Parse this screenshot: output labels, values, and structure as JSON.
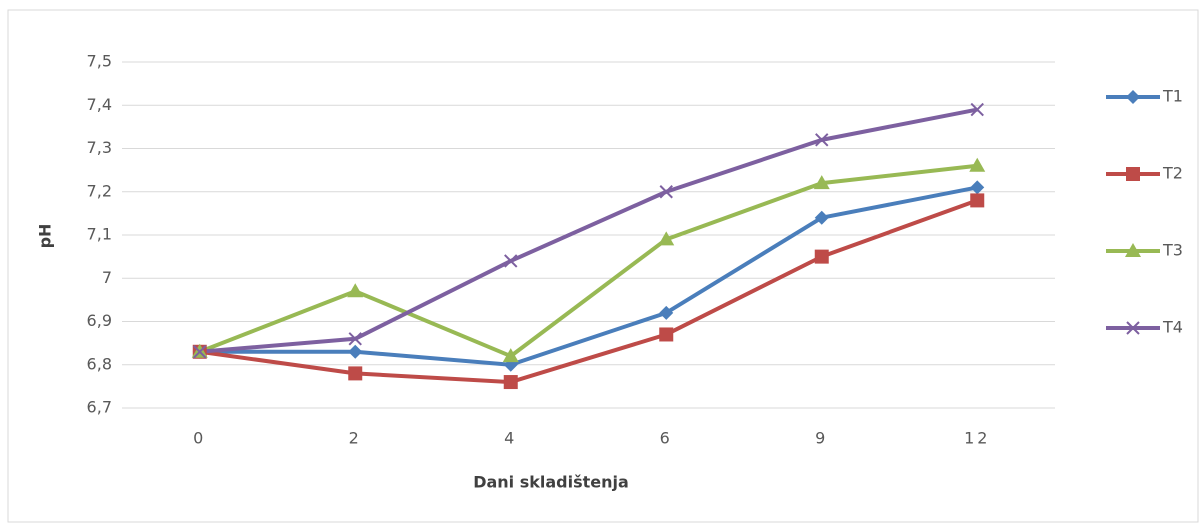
{
  "chart_data": {
    "type": "line",
    "y_label": "pH",
    "x_label": "Dani skladištenja",
    "categories": [
      "0",
      "2",
      "4",
      "6",
      "9",
      "12"
    ],
    "series": [
      {
        "name": "T1",
        "color": "#4a7ebb",
        "marker": "diamond",
        "values": [
          6.83,
          6.83,
          6.8,
          6.92,
          7.14,
          7.21
        ]
      },
      {
        "name": "T2",
        "color": "#be4b48",
        "marker": "square",
        "values": [
          6.83,
          6.78,
          6.76,
          6.87,
          7.05,
          7.18
        ]
      },
      {
        "name": "T3",
        "color": "#98b954",
        "marker": "triangle",
        "values": [
          6.83,
          6.97,
          6.82,
          7.09,
          7.22,
          7.26
        ]
      },
      {
        "name": "T4",
        "color": "#7d60a0",
        "marker": "x",
        "values": [
          6.83,
          6.86,
          7.04,
          7.2,
          7.32,
          7.39
        ]
      }
    ],
    "ylim": [
      6.7,
      7.5
    ],
    "yticks": [
      {
        "value": 6.7,
        "label": "6,7"
      },
      {
        "value": 6.8,
        "label": "6,8"
      },
      {
        "value": 6.9,
        "label": "6,9"
      },
      {
        "value": 7,
        "label": "7"
      },
      {
        "value": 7.1,
        "label": "7,1"
      },
      {
        "value": 7.2,
        "label": "7,2"
      },
      {
        "value": 7.3,
        "label": "7,3"
      },
      {
        "value": 7.4,
        "label": "7,4"
      },
      {
        "value": 7.5,
        "label": "7,5"
      }
    ],
    "grid": true,
    "legend": "right"
  }
}
